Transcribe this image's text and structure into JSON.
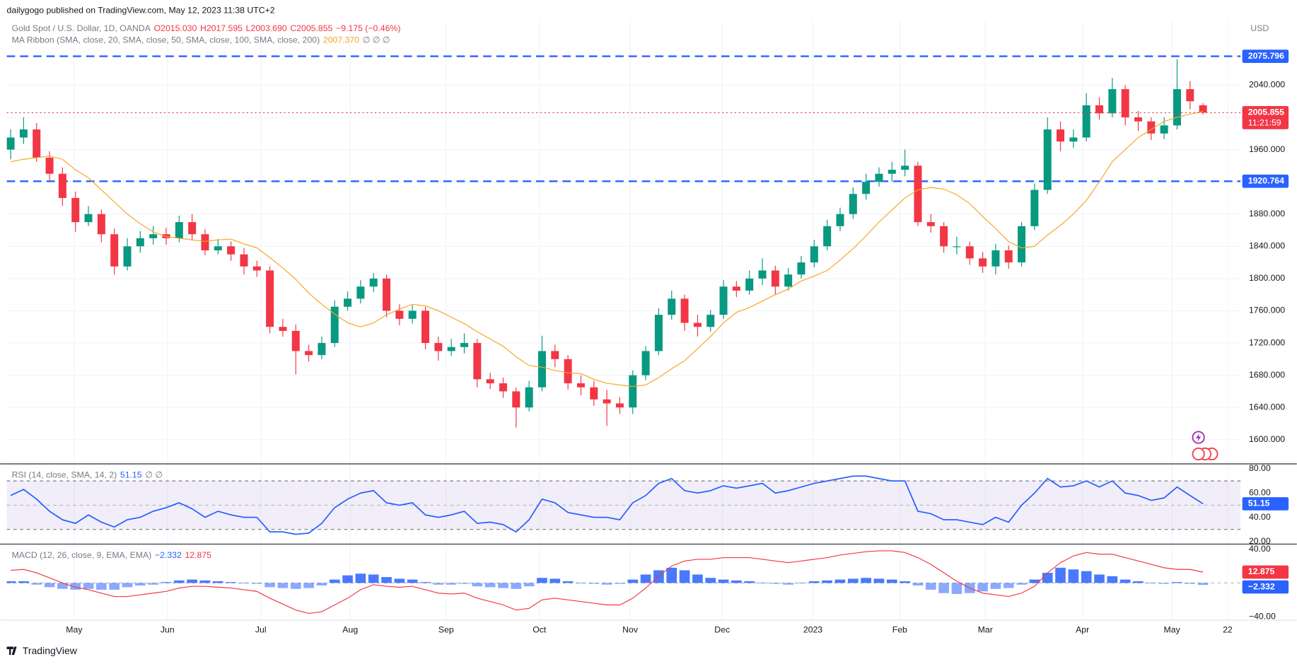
{
  "header": {
    "publisher": "dailygogo published on TradingView.com, May 12, 2023 11:38 UTC+2",
    "unit": "USD",
    "footer": "TradingView"
  },
  "chart_data": [
    {
      "type": "candlestick",
      "title": "Gold Spot / U.S. Dollar, 1D, OANDA",
      "legend_values": [
        "O2015.030",
        "H2017.595",
        "L2003.690",
        "C2005.855",
        "−9.175 (−0.46%)"
      ],
      "up_color": "#089981",
      "down_color": "#f23645",
      "open": [
        1960,
        1975,
        1985,
        1950,
        1930,
        1900,
        1870,
        1880,
        1855,
        1815,
        1840,
        1850,
        1855,
        1850,
        1870,
        1855,
        1835,
        1840,
        1830,
        1815,
        1810,
        1740,
        1735,
        1710,
        1705,
        1720,
        1765,
        1775,
        1790,
        1800,
        1760,
        1750,
        1760,
        1720,
        1710,
        1715,
        1720,
        1675,
        1670,
        1660,
        1640,
        1665,
        1710,
        1700,
        1670,
        1665,
        1650,
        1645,
        1640,
        1680,
        1710,
        1755,
        1775,
        1745,
        1740,
        1755,
        1790,
        1785,
        1800,
        1810,
        1790,
        1805,
        1820,
        1840,
        1865,
        1880,
        1905,
        1920,
        1930,
        1935,
        1940,
        1870,
        1865,
        1840,
        1840,
        1825,
        1815,
        1835,
        1820,
        1865,
        1910,
        1985,
        1970,
        1975,
        2015,
        2005,
        2035,
        2000,
        1995,
        1980,
        1990,
        2035,
        2015.03
      ],
      "high": [
        1985,
        2000,
        1993,
        1958,
        1938,
        1908,
        1890,
        1886,
        1862,
        1850,
        1859,
        1865,
        1863,
        1878,
        1880,
        1861,
        1849,
        1846,
        1838,
        1822,
        1815,
        1750,
        1743,
        1718,
        1728,
        1773,
        1784,
        1798,
        1807,
        1805,
        1768,
        1767,
        1765,
        1728,
        1725,
        1732,
        1725,
        1683,
        1677,
        1665,
        1673,
        1729,
        1718,
        1705,
        1680,
        1673,
        1662,
        1653,
        1686,
        1716,
        1763,
        1785,
        1780,
        1755,
        1761,
        1798,
        1797,
        1810,
        1825,
        1816,
        1813,
        1828,
        1848,
        1873,
        1888,
        1913,
        1930,
        1938,
        1945,
        1960,
        1945,
        1880,
        1870,
        1852,
        1846,
        1833,
        1843,
        1841,
        1870,
        1918,
        2000,
        1995,
        1985,
        2030,
        2025,
        2049,
        2040,
        2008,
        2000,
        2000,
        2072,
        2045,
        2017.595
      ],
      "low": [
        1948,
        1967,
        1945,
        1922,
        1890,
        1858,
        1865,
        1845,
        1805,
        1810,
        1832,
        1842,
        1842,
        1845,
        1847,
        1829,
        1830,
        1822,
        1805,
        1802,
        1732,
        1728,
        1681,
        1697,
        1700,
        1715,
        1760,
        1769,
        1783,
        1752,
        1742,
        1744,
        1712,
        1698,
        1704,
        1707,
        1665,
        1663,
        1652,
        1615,
        1635,
        1660,
        1690,
        1662,
        1655,
        1642,
        1617,
        1632,
        1632,
        1674,
        1705,
        1749,
        1735,
        1728,
        1734,
        1750,
        1777,
        1780,
        1792,
        1780,
        1785,
        1800,
        1814,
        1835,
        1859,
        1874,
        1898,
        1914,
        1920,
        1927,
        1865,
        1857,
        1832,
        1830,
        1817,
        1807,
        1805,
        1812,
        1815,
        1860,
        1905,
        1958,
        1962,
        1970,
        1997,
        2000,
        1990,
        1983,
        1972,
        1973,
        1985,
        2010,
        2003.69
      ],
      "close": [
        1975,
        1985,
        1950,
        1930,
        1900,
        1870,
        1880,
        1855,
        1815,
        1840,
        1850,
        1855,
        1850,
        1870,
        1855,
        1835,
        1840,
        1830,
        1815,
        1810,
        1740,
        1735,
        1710,
        1705,
        1720,
        1765,
        1775,
        1790,
        1800,
        1760,
        1750,
        1760,
        1720,
        1710,
        1715,
        1720,
        1675,
        1670,
        1660,
        1640,
        1665,
        1710,
        1700,
        1670,
        1665,
        1650,
        1645,
        1640,
        1680,
        1710,
        1755,
        1775,
        1745,
        1740,
        1755,
        1790,
        1785,
        1800,
        1810,
        1790,
        1805,
        1820,
        1840,
        1865,
        1880,
        1905,
        1920,
        1930,
        1935,
        1940,
        1870,
        1865,
        1840,
        1840,
        1825,
        1815,
        1835,
        1820,
        1865,
        1910,
        1985,
        1970,
        1975,
        2015,
        2005,
        2035,
        2000,
        1995,
        1980,
        1990,
        2035,
        2020,
        2005.855
      ],
      "countdown": "11:21:59",
      "ma": {
        "name": "MA Ribbon (SMA, close, 20, SMA, close, 50, SMA, close, 100, SMA, close, 200)",
        "color": "#f5a623",
        "legend_value": "2007.370",
        "legend_extra": "∅ ∅ ∅",
        "values": [
          1945,
          1948,
          1950,
          1952,
          1948,
          1935,
          1925,
          1910,
          1895,
          1880,
          1868,
          1858,
          1852,
          1850,
          1848,
          1846,
          1848,
          1849,
          1843,
          1838,
          1826,
          1813,
          1799,
          1782,
          1768,
          1756,
          1745,
          1740,
          1745,
          1755,
          1762,
          1768,
          1766,
          1760,
          1752,
          1744,
          1734,
          1725,
          1716,
          1703,
          1692,
          1690,
          1686,
          1683,
          1682,
          1675,
          1670,
          1668,
          1666,
          1668,
          1677,
          1688,
          1698,
          1713,
          1728,
          1745,
          1758,
          1764,
          1772,
          1780,
          1787,
          1797,
          1803,
          1810,
          1823,
          1837,
          1853,
          1870,
          1885,
          1900,
          1910,
          1913,
          1911,
          1904,
          1893,
          1877,
          1862,
          1846,
          1838,
          1840,
          1854,
          1866,
          1880,
          1897,
          1920,
          1945,
          1960,
          1975,
          1985,
          1995,
          2000,
          2004,
          2007.37
        ]
      },
      "hlines": [
        {
          "value": 2075.796,
          "color": "#2962ff"
        },
        {
          "value": 1920.764,
          "color": "#2962ff"
        }
      ],
      "xlim": [
        -0.3,
        94.9
      ],
      "xticks": [
        {
          "value": 4.9,
          "label": "May"
        },
        {
          "value": 12.1,
          "label": "Jun"
        },
        {
          "value": 19.3,
          "label": "Jul"
        },
        {
          "value": 26.2,
          "label": "Aug"
        },
        {
          "value": 33.6,
          "label": "Sep"
        },
        {
          "value": 40.8,
          "label": "Oct"
        },
        {
          "value": 47.8,
          "label": "Nov"
        },
        {
          "value": 54.9,
          "label": "Dec"
        },
        {
          "value": 61.9,
          "label": "2023"
        },
        {
          "value": 68.6,
          "label": "Feb"
        },
        {
          "value": 75.2,
          "label": "Mar"
        },
        {
          "value": 82.7,
          "label": "Apr"
        },
        {
          "value": 89.6,
          "label": "May"
        },
        {
          "value": 93.9,
          "label": "22"
        }
      ],
      "ylim": [
        1571,
        2120
      ],
      "yticks": [
        {
          "value": 1600,
          "label": "1600.000"
        },
        {
          "value": 1640,
          "label": "1640.000"
        },
        {
          "value": 1680,
          "label": "1680.000"
        },
        {
          "value": 1720,
          "label": "1720.000"
        },
        {
          "value": 1760,
          "label": "1760.000"
        },
        {
          "value": 1800,
          "label": "1800.000"
        },
        {
          "value": 1840,
          "label": "1840.000"
        },
        {
          "value": 1880,
          "label": "1880.000"
        },
        {
          "value": 1920,
          "label": "1920.000"
        },
        {
          "value": 1960,
          "label": "1960.000"
        },
        {
          "value": 2000,
          "label": "2000.000"
        },
        {
          "value": 2040,
          "label": "2040.000"
        }
      ],
      "grid": true
    },
    {
      "type": "line",
      "title": "RSI (14, close, SMA, 14, 2)",
      "legend_extra": "∅ ∅",
      "color": "#2962ff",
      "values": [
        58,
        63,
        55,
        45,
        38,
        35,
        42,
        36,
        32,
        38,
        40,
        45,
        48,
        52,
        47,
        40,
        45,
        42,
        40,
        40,
        28,
        28,
        26,
        27,
        35,
        48,
        55,
        60,
        62,
        52,
        50,
        52,
        42,
        40,
        42,
        45,
        35,
        36,
        34,
        28,
        38,
        55,
        52,
        44,
        42,
        40,
        40,
        38,
        52,
        58,
        68,
        72,
        62,
        60,
        62,
        66,
        64,
        66,
        68,
        60,
        62,
        65,
        68,
        70,
        72,
        74,
        74,
        72,
        70,
        70,
        45,
        43,
        38,
        38,
        36,
        34,
        40,
        36,
        50,
        60,
        72,
        65,
        66,
        70,
        65,
        70,
        60,
        58,
        54,
        56,
        65,
        58,
        51.15
      ],
      "band": [
        30,
        70
      ],
      "midline": 50,
      "ylim": [
        18.6,
        82.7
      ],
      "yticks": [
        {
          "value": 20,
          "label": "20.00"
        },
        {
          "value": 40,
          "label": "40.00"
        },
        {
          "value": 60,
          "label": "60.00"
        },
        {
          "value": 80,
          "label": "80.00"
        }
      ]
    },
    {
      "type": "macd",
      "title": "MACD (12, 26, close, 9, EMA, EMA)",
      "histogram": {
        "color": "#2962ff",
        "legend_value": "−2.332",
        "values": [
          2,
          2,
          -2,
          -5,
          -7,
          -8,
          -7,
          -8,
          -8,
          -5,
          -3,
          -2,
          1,
          3,
          4,
          3,
          2,
          1,
          0,
          -1,
          -5,
          -6,
          -7,
          -6,
          -3,
          4,
          9,
          11,
          10,
          7,
          5,
          4,
          1,
          -2,
          -2,
          -1,
          -4,
          -5,
          -6,
          -7,
          -4,
          6,
          5,
          2,
          0,
          -1,
          -2,
          -1,
          4,
          10,
          15,
          18,
          15,
          10,
          6,
          4,
          3,
          2,
          0,
          -1,
          -2,
          0,
          2,
          3,
          4,
          5,
          6,
          5,
          4,
          2,
          -3,
          -8,
          -12,
          -13,
          -12,
          -10,
          -7,
          -6,
          -2,
          4,
          12,
          18,
          16,
          14,
          10,
          8,
          4,
          2,
          0,
          -1,
          1,
          -1,
          -2.332
        ]
      },
      "line": {
        "color": "#f23645",
        "values": [
          15,
          16,
          12,
          6,
          0,
          -5,
          -8,
          -12,
          -16,
          -16,
          -14,
          -12,
          -10,
          -6,
          -4,
          -4,
          -5,
          -6,
          -8,
          -10,
          -18,
          -25,
          -32,
          -36,
          -34,
          -26,
          -18,
          -8,
          -2,
          -4,
          -5,
          -4,
          -8,
          -12,
          -13,
          -12,
          -18,
          -22,
          -26,
          -32,
          -30,
          -20,
          -18,
          -20,
          -22,
          -24,
          -26,
          -26,
          -18,
          -6,
          8,
          20,
          26,
          28,
          28,
          30,
          30,
          30,
          28,
          26,
          24,
          26,
          28,
          30,
          33,
          35,
          37,
          38,
          38,
          36,
          30,
          22,
          12,
          2,
          -6,
          -12,
          -14,
          -16,
          -12,
          -4,
          12,
          24,
          32,
          36,
          34,
          34,
          30,
          26,
          22,
          18,
          16,
          16,
          12.875
        ]
      },
      "zero": 0,
      "ylim": [
        -44,
        44
      ],
      "yticks": [
        {
          "value": 40,
          "label": "40.00"
        },
        {
          "value": -40,
          "label": "−40.00"
        }
      ]
    }
  ]
}
